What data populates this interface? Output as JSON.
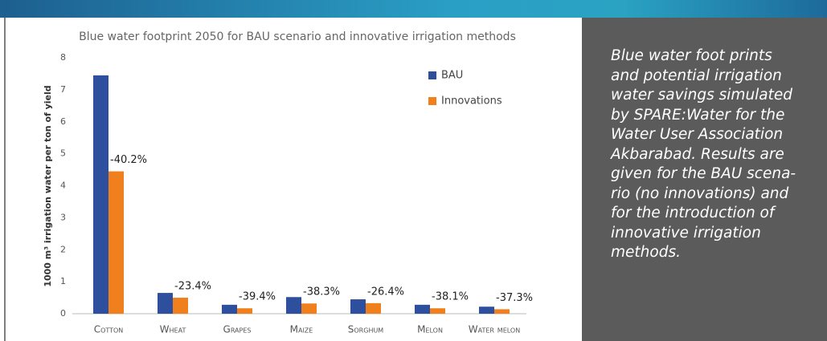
{
  "chart_data": {
    "type": "bar",
    "title": "Blue water footprint 2050 for BAU scenario and innovative irrigation methods",
    "y_label": "1000 m³ irrigation water per ton of yield",
    "categories": [
      "Cotton",
      "Wheat",
      "Grapes",
      "Maize",
      "Sorghum",
      "Melon",
      "Water melon"
    ],
    "series": [
      {
        "name": "BAU",
        "color": "#2e4f9e",
        "values": [
          7.45,
          0.65,
          0.28,
          0.52,
          0.45,
          0.28,
          0.22
        ]
      },
      {
        "name": "Innovations",
        "color": "#f07f1e",
        "values": [
          4.45,
          0.5,
          0.17,
          0.32,
          0.33,
          0.17,
          0.14
        ]
      }
    ],
    "annotations": [
      "-40.2%",
      "-23.4%",
      "-39.4%",
      "-38.3%",
      "-26.4%",
      "-38.1%",
      "-37.3%"
    ],
    "ylim": [
      0,
      8
    ],
    "yticks": [
      0,
      1,
      2,
      3,
      4,
      5,
      6,
      7,
      8
    ],
    "grid": false,
    "legend": "upper right"
  },
  "caption_lines": [
    "Blue water foot prints",
    "and potential irrigation",
    "water savings simulated",
    "by SPARE:Water for the",
    "Water User Association",
    "Akbarabad. Results are",
    "given for the BAU scena-",
    "rio (no innovations) and",
    "for the introduction of",
    "innovative irrigation",
    "methods."
  ]
}
